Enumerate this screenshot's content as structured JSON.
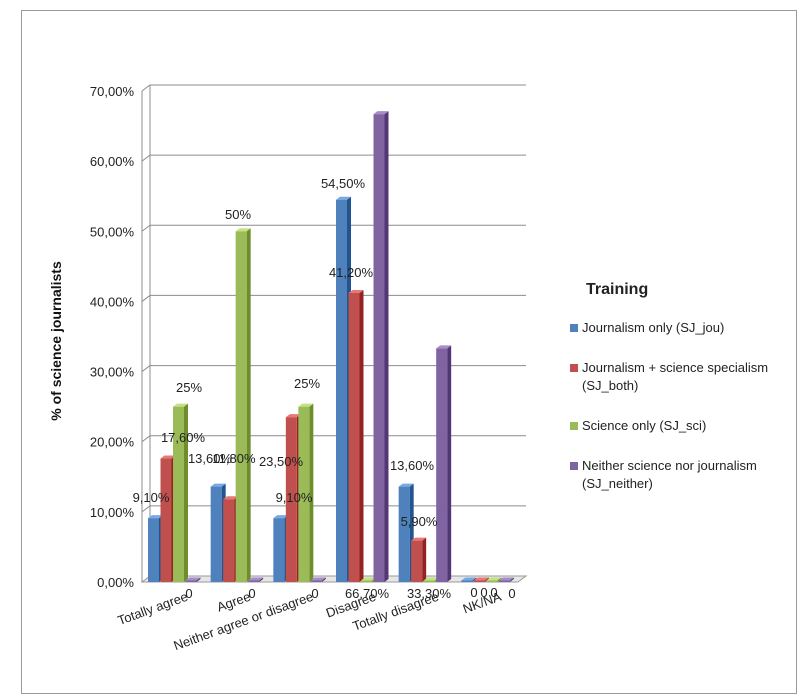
{
  "chart_data": {
    "type": "bar",
    "categories": [
      "Totally agree",
      "Agree",
      "Neither agree or disagree",
      "Disagree",
      "Totally disagree",
      "NK/NA"
    ],
    "series": [
      {
        "name": "Journalism only (SJ_jou)",
        "color": "#4f81bd",
        "values": [
          9.1,
          13.6,
          9.1,
          54.5,
          13.6,
          0
        ],
        "labels": [
          "9,10%",
          "13,60%",
          "9,10%",
          "54,50%",
          "13,60%",
          "0"
        ]
      },
      {
        "name": "Journalism + science specialism (SJ_both)",
        "color": "#c0504d",
        "values": [
          17.6,
          11.8,
          23.5,
          41.2,
          5.9,
          0
        ],
        "labels": [
          "17,60%",
          "11,80%",
          "23,50%",
          "41,20%",
          "5,90%",
          "0"
        ]
      },
      {
        "name": "Science only (SJ_sci)",
        "color": "#9bbb59",
        "values": [
          25,
          50,
          25,
          0,
          0,
          0
        ],
        "labels": [
          "25%",
          "50%",
          "25%",
          "",
          "",
          "0"
        ]
      },
      {
        "name": "Neither science nor journalism (SJ_neither)",
        "color": "#8064a2",
        "values": [
          0,
          0,
          0,
          66.7,
          33.3,
          0
        ],
        "labels": [
          "0",
          "0",
          "0",
          "66,70%",
          "33,30%",
          "0"
        ]
      }
    ],
    "ylabel": "% of science journalists",
    "ylim": [
      0,
      70
    ],
    "yticks": [
      "0,00%",
      "10,00%",
      "20,00%",
      "30,00%",
      "40,00%",
      "50,00%",
      "60,00%",
      "70,00%"
    ],
    "legend_title": "Training",
    "legend_position": "right",
    "grid": true
  }
}
